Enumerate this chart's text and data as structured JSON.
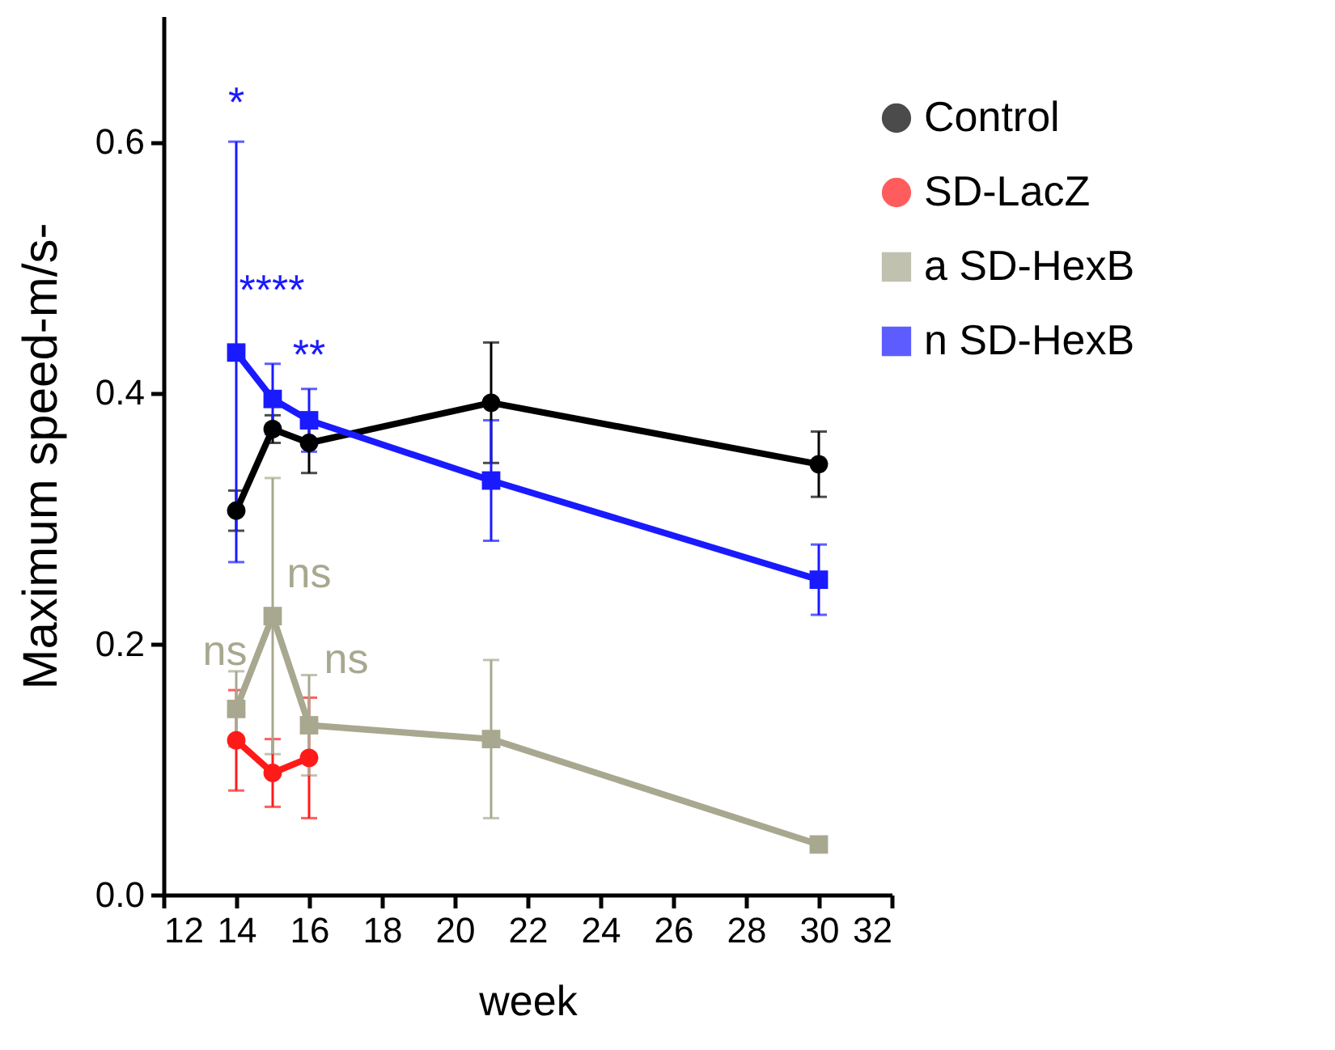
{
  "chart_data": {
    "type": "line",
    "xlabel": "week",
    "ylabel": "Maximum speed-m/s-",
    "xlim": [
      12,
      32
    ],
    "xticks": [
      12,
      14,
      16,
      18,
      20,
      22,
      24,
      26,
      28,
      30,
      32
    ],
    "ylim": [
      0,
      0.7
    ],
    "yticks": [
      {
        "value": 0,
        "label": "0.0"
      },
      0.2,
      0.4,
      0.6
    ],
    "grid": false,
    "legend": "top right",
    "x": [
      14,
      15,
      16,
      21,
      30
    ],
    "series": [
      {
        "name": "Control",
        "color": "#000000",
        "marker": "circle",
        "values": [
          0.306,
          0.371,
          0.36,
          0.392,
          0.343
        ],
        "errors": [
          0.016,
          0.011,
          0.024,
          0.048,
          0.026
        ]
      },
      {
        "name": "SD-LacZ",
        "color": "#ff1a1a",
        "marker": "circle",
        "x": [
          14,
          15,
          16
        ],
        "values": [
          0.123,
          0.097,
          0.109
        ],
        "errors": [
          0.04,
          0.027,
          0.048
        ]
      },
      {
        "name": "a SD-HexB",
        "color": "#a8a890",
        "marker": "square",
        "values": [
          0.148,
          0.222,
          0.135,
          0.124,
          0.04
        ],
        "errors": [
          0.03,
          0.11,
          0.04,
          0.063,
          0.003
        ]
      },
      {
        "name": "n SD-HexB",
        "color": "#1a1aff",
        "marker": "square",
        "values": [
          0.432,
          0.395,
          0.378,
          0.33,
          0.251
        ],
        "errors": [
          [
            0.265,
            0.6
          ],
          0.028,
          0.025,
          0.048,
          0.028
        ]
      }
    ],
    "annotations": [
      "*",
      "****",
      "**",
      "ns",
      "ns",
      "ns"
    ]
  }
}
